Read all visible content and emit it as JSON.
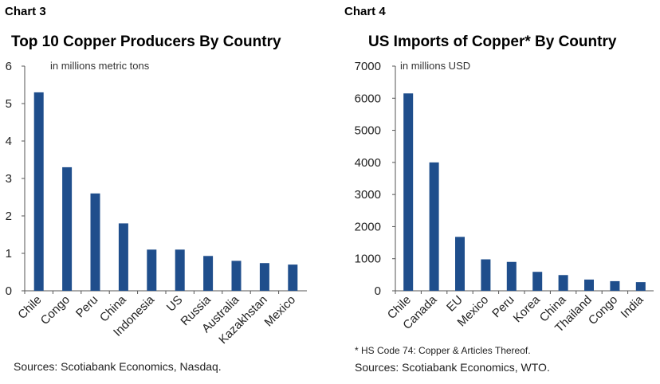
{
  "chart_data": [
    {
      "type": "bar",
      "label": "Chart 3",
      "title": "Top 10 Copper Producers By Country",
      "unit_note": "in millions metric tons",
      "categories": [
        "Chile",
        "Congo",
        "Peru",
        "China",
        "Indonesia",
        "US",
        "Russia",
        "Australia",
        "Kazakhstan",
        "Mexico"
      ],
      "values": [
        5.3,
        3.3,
        2.6,
        1.8,
        1.1,
        1.1,
        0.93,
        0.8,
        0.74,
        0.7
      ],
      "ylim": [
        0,
        6
      ],
      "yticks": [
        "0",
        "1",
        "2",
        "3",
        "4",
        "5",
        "6"
      ],
      "grid": false,
      "bar_color": "#1f4e8c",
      "source": "Sources: Scotiabank Economics, Nasdaq."
    },
    {
      "type": "bar",
      "label": "Chart 4",
      "title": "US Imports of Copper* By Country",
      "unit_note": "in millions USD",
      "categories": [
        "Chile",
        "Canada",
        "EU",
        "Mexico",
        "Peru",
        "Korea",
        "China",
        "Thailand",
        "Congo",
        "India"
      ],
      "values": [
        6150,
        4000,
        1680,
        980,
        900,
        590,
        490,
        350,
        300,
        270
      ],
      "ylim": [
        0,
        7000
      ],
      "yticks": [
        "0",
        "1000",
        "2000",
        "3000",
        "4000",
        "5000",
        "6000",
        "7000"
      ],
      "grid": false,
      "bar_color": "#1f4e8c",
      "footnote": "* HS Code 74: Copper & Articles Thereof.",
      "source": "Sources: Scotiabank Economics, WTO."
    }
  ]
}
